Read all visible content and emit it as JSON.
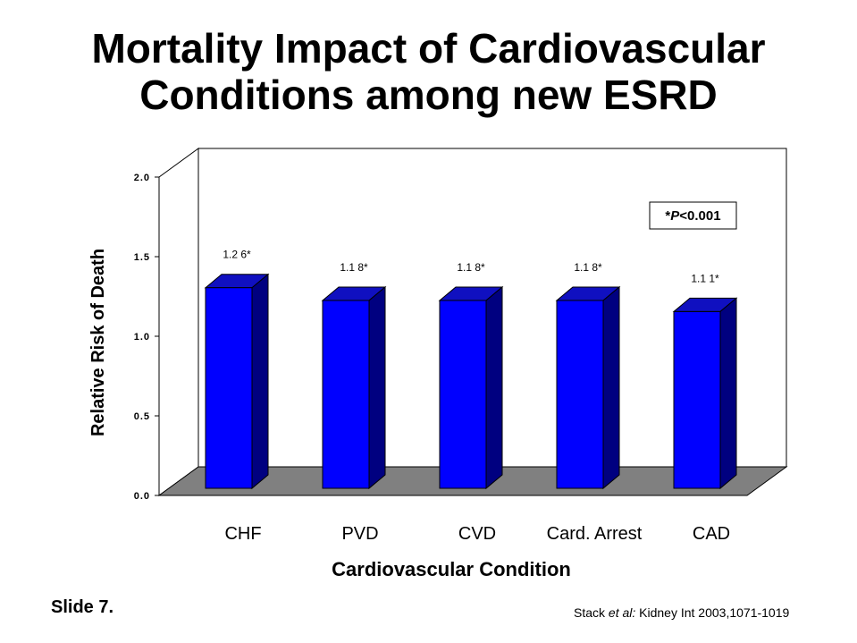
{
  "slide": {
    "title_line1": "Mortality Impact of Cardiovascular",
    "title_line2": "Conditions among new ESRD",
    "slide_number": "Slide 7.",
    "citation": {
      "author": "Stack ",
      "etal": "et al:",
      "source": " Kidney Int 2003,1071-1019"
    }
  },
  "chart_data": {
    "type": "bar",
    "style": "3d",
    "categories": [
      "CHF",
      "PVD",
      "CVD",
      "Card. Arrest",
      "CAD"
    ],
    "values": [
      1.26,
      1.18,
      1.18,
      1.18,
      1.11
    ],
    "data_labels": [
      "1.2 6*",
      "1.1 8*",
      "1.1 8*",
      "1.1 8*",
      "1.1 1*"
    ],
    "xlabel": "Cardiovascular Condition",
    "ylabel": "Relative Risk of Death",
    "ylim": [
      0,
      2.0
    ],
    "yticks": [
      "0.0",
      "0.5",
      "1.0",
      "1.5",
      "2.0"
    ],
    "yticks_values": [
      0,
      0.5,
      1.0,
      1.5,
      2.0
    ],
    "annotation": "*P<0.001",
    "annotation_italic": "P",
    "colors": {
      "bar_front": "#0000FF",
      "bar_side": "#000080",
      "bar_top": "#1010C0",
      "floor": "#808080"
    }
  }
}
